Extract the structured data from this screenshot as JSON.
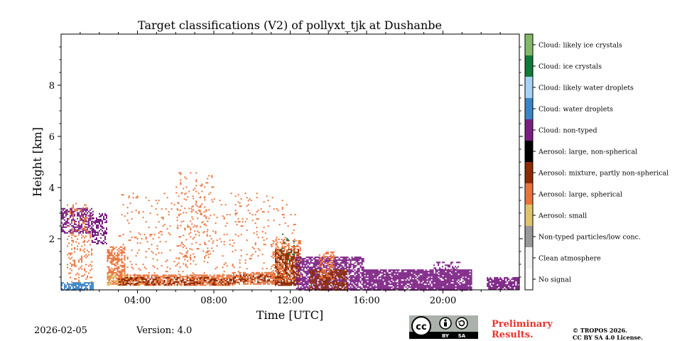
{
  "chart_data": {
    "type": "heatmap",
    "title": "Target classifications (V2) of pollyxt_tjk at Dushanbe",
    "xlabel": "Time [UTC]",
    "ylabel": "Height [km]",
    "xlim": [
      0,
      24
    ],
    "ylim": [
      0,
      10
    ],
    "xticks": [
      {
        "value": 4,
        "label": "04:00"
      },
      {
        "value": 8,
        "label": "08:00"
      },
      {
        "value": 12,
        "label": "12:00"
      },
      {
        "value": 16,
        "label": "16:00"
      },
      {
        "value": 20,
        "label": "20:00"
      }
    ],
    "yticks": [
      {
        "value": 2,
        "label": "2"
      },
      {
        "value": 4,
        "label": "4"
      },
      {
        "value": 6,
        "label": "6"
      },
      {
        "value": 8,
        "label": "8"
      }
    ],
    "classes": [
      {
        "id": 0,
        "label": "No signal",
        "color": "#ffffff"
      },
      {
        "id": 1,
        "label": "Clean atmosphere",
        "color": "#f4f4f4"
      },
      {
        "id": 2,
        "label": "Non-typed particles/low conc.",
        "color": "#999999"
      },
      {
        "id": 3,
        "label": "Aerosol: small",
        "color": "#e0c46c"
      },
      {
        "id": 4,
        "label": "Aerosol: large, spherical",
        "color": "#e8743c"
      },
      {
        "id": 5,
        "label": "Aerosol: mixture, partly non-spherical",
        "color": "#8c2a04"
      },
      {
        "id": 6,
        "label": "Aerosol: large, non-spherical",
        "color": "#000000"
      },
      {
        "id": 7,
        "label": "Cloud: non-typed",
        "color": "#7a1f82"
      },
      {
        "id": 8,
        "label": "Cloud: water droplets",
        "color": "#3a85c8"
      },
      {
        "id": 9,
        "label": "Cloud: likely water droplets",
        "color": "#a8d2f4"
      },
      {
        "id": 10,
        "label": "Cloud: ice crystals",
        "color": "#107a38"
      },
      {
        "id": 11,
        "label": "Cloud: likely ice crystals",
        "color": "#84b868"
      }
    ],
    "regions": [
      {
        "t0": 0.0,
        "t1": 1.7,
        "z0": 0.0,
        "z1": 0.3,
        "class": 8,
        "density": 0.7
      },
      {
        "t0": 0.0,
        "t1": 1.7,
        "z0": 2.2,
        "z1": 3.2,
        "class": 7,
        "density": 0.55
      },
      {
        "t0": 0.3,
        "t1": 1.6,
        "z0": 0.3,
        "z1": 3.4,
        "class": 4,
        "density": 0.18
      },
      {
        "t0": 1.6,
        "t1": 2.4,
        "z0": 1.8,
        "z1": 3.0,
        "class": 7,
        "density": 0.45
      },
      {
        "t0": 2.4,
        "t1": 3.3,
        "z0": 0.2,
        "z1": 1.7,
        "class": 4,
        "density": 0.6
      },
      {
        "t0": 2.4,
        "t1": 4.5,
        "z0": 0.2,
        "z1": 0.6,
        "class": 3,
        "density": 0.4
      },
      {
        "t0": 3.0,
        "t1": 9.0,
        "z0": 0.2,
        "z1": 0.6,
        "class": 4,
        "density": 0.75
      },
      {
        "t0": 3.0,
        "t1": 9.0,
        "z0": 0.2,
        "z1": 0.5,
        "class": 5,
        "density": 0.35
      },
      {
        "t0": 3.0,
        "t1": 12.3,
        "z0": 0.6,
        "z1": 3.8,
        "class": 4,
        "density": 0.05
      },
      {
        "t0": 6.0,
        "t1": 8.0,
        "z0": 1.0,
        "z1": 4.6,
        "class": 4,
        "density": 0.08
      },
      {
        "t0": 9.0,
        "t1": 11.5,
        "z0": 0.2,
        "z1": 0.7,
        "class": 4,
        "density": 0.7
      },
      {
        "t0": 9.0,
        "t1": 11.5,
        "z0": 0.3,
        "z1": 0.6,
        "class": 5,
        "density": 0.35
      },
      {
        "t0": 11.2,
        "t1": 12.5,
        "z0": 0.2,
        "z1": 1.6,
        "class": 5,
        "density": 0.7
      },
      {
        "t0": 11.0,
        "t1": 12.5,
        "z0": 0.3,
        "z1": 2.0,
        "class": 4,
        "density": 0.3
      },
      {
        "t0": 11.5,
        "t1": 12.2,
        "z0": 1.2,
        "z1": 2.2,
        "class": 10,
        "density": 0.08
      },
      {
        "t0": 12.3,
        "t1": 15.8,
        "z0": 0.0,
        "z1": 1.3,
        "class": 7,
        "density": 0.65
      },
      {
        "t0": 13.0,
        "t1": 15.0,
        "z0": 0.0,
        "z1": 0.8,
        "class": 5,
        "density": 0.6
      },
      {
        "t0": 13.5,
        "t1": 14.3,
        "z0": 0.4,
        "z1": 1.5,
        "class": 4,
        "density": 0.4
      },
      {
        "t0": 15.8,
        "t1": 21.5,
        "z0": 0.0,
        "z1": 0.8,
        "class": 7,
        "density": 0.85
      },
      {
        "t0": 19.5,
        "t1": 21.0,
        "z0": 0.8,
        "z1": 1.1,
        "class": 7,
        "density": 0.3
      },
      {
        "t0": 22.3,
        "t1": 24.0,
        "z0": 0.0,
        "z1": 0.5,
        "class": 7,
        "density": 0.8
      }
    ]
  },
  "footer": {
    "date": "2026-02-05",
    "version": "Version: 4.0",
    "license_badge_text": {
      "cc": "cc",
      "by": "BY",
      "sa": "SA"
    },
    "preliminary": [
      "Preliminary",
      "Results."
    ],
    "copyright": [
      "© TROPOS 2026.",
      "CC BY SA 4.0 License."
    ]
  }
}
